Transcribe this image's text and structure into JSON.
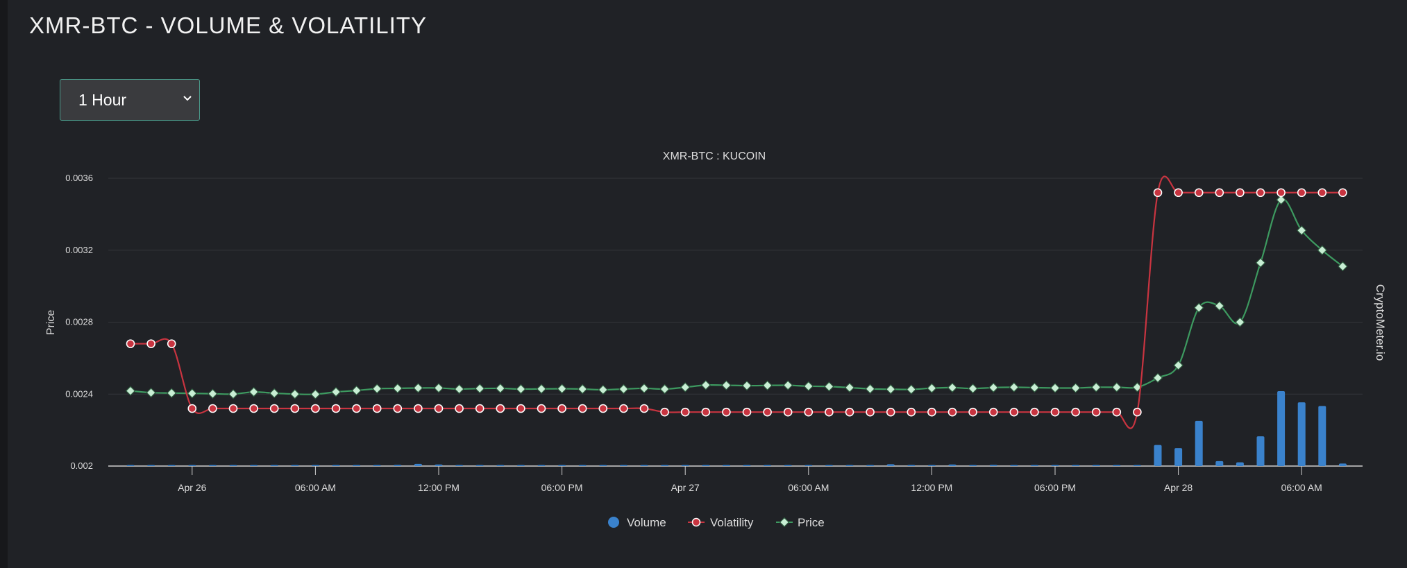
{
  "page": {
    "title": "XMR-BTC - VOLUME & VOLATILITY"
  },
  "interval": {
    "selected": "1 Hour"
  },
  "colors": {
    "volume": "#3a82cc",
    "volatility": "#c83440",
    "price": "#3d9a60",
    "price_marker": "#c8eed4",
    "grid": "#34363b",
    "text": "#dddddd"
  },
  "chart_data": {
    "type": "line",
    "title": "XMR-BTC : KUCOIN",
    "ylabel": "Price",
    "watermark": "CryptoMeter.io",
    "ylim": [
      0.002,
      0.0036
    ],
    "yticks": [
      0.002,
      0.0024,
      0.0028,
      0.0032,
      0.0036
    ],
    "ytick_labels": [
      "0.002",
      "0.0024",
      "0.0028",
      "0.0032",
      "0.0036"
    ],
    "x_points": 60,
    "xticks": [
      {
        "index": 3,
        "label": "Apr 26"
      },
      {
        "index": 9,
        "label": "06:00 AM"
      },
      {
        "index": 15,
        "label": "12:00 PM"
      },
      {
        "index": 21,
        "label": "06:00 PM"
      },
      {
        "index": 27,
        "label": "Apr 27"
      },
      {
        "index": 33,
        "label": "06:00 AM"
      },
      {
        "index": 39,
        "label": "12:00 PM"
      },
      {
        "index": 45,
        "label": "06:00 PM"
      },
      {
        "index": 51,
        "label": "Apr 28"
      },
      {
        "index": 57,
        "label": "06:00 AM"
      }
    ],
    "legend": [
      "Volume",
      "Volatility",
      "Price"
    ],
    "series": [
      {
        "name": "Volatility",
        "values": [
          0.00268,
          0.00268,
          0.00268,
          0.00232,
          0.00232,
          0.00232,
          0.00232,
          0.00232,
          0.00232,
          0.00232,
          0.00232,
          0.00232,
          0.00232,
          0.00232,
          0.00232,
          0.00232,
          0.00232,
          0.00232,
          0.00232,
          0.00232,
          0.00232,
          0.00232,
          0.00232,
          0.00232,
          0.00232,
          0.00232,
          0.0023,
          0.0023,
          0.0023,
          0.0023,
          0.0023,
          0.0023,
          0.0023,
          0.0023,
          0.0023,
          0.0023,
          0.0023,
          0.0023,
          0.0023,
          0.0023,
          0.0023,
          0.0023,
          0.0023,
          0.0023,
          0.0023,
          0.0023,
          0.0023,
          0.0023,
          0.0023,
          0.0023,
          0.00352,
          0.00352,
          0.00352,
          0.00352,
          0.00352,
          0.00352,
          0.00352,
          0.00352,
          0.00352,
          0.00352
        ]
      },
      {
        "name": "Price",
        "values": [
          0.002418,
          0.002408,
          0.002406,
          0.002404,
          0.002402,
          0.0024,
          0.002412,
          0.002405,
          0.0024,
          0.002399,
          0.002412,
          0.00242,
          0.00243,
          0.002432,
          0.002434,
          0.002434,
          0.002428,
          0.002431,
          0.002432,
          0.002428,
          0.002429,
          0.00243,
          0.002428,
          0.002424,
          0.002428,
          0.002432,
          0.002428,
          0.002438,
          0.00245,
          0.002449,
          0.002447,
          0.002448,
          0.002449,
          0.002444,
          0.002442,
          0.002436,
          0.002429,
          0.002427,
          0.002426,
          0.002433,
          0.002436,
          0.002431,
          0.002436,
          0.002438,
          0.002436,
          0.002434,
          0.002434,
          0.002438,
          0.002438,
          0.002438,
          0.00249,
          0.00256,
          0.00288,
          0.00289,
          0.0028,
          0.00313,
          0.00348,
          0.00331,
          0.0032,
          0.00311
        ]
      },
      {
        "name": "Volume",
        "values": [
          0,
          0,
          0,
          0.1,
          0,
          0,
          0,
          0.15,
          0,
          0,
          0,
          0,
          0.08,
          0.2,
          0.35,
          0.25,
          0.1,
          0.08,
          0,
          0,
          0,
          0.08,
          0.12,
          0.05,
          0.05,
          0,
          0,
          0.05,
          0,
          0.05,
          0.1,
          0.08,
          0.05,
          0.05,
          0,
          0,
          0,
          0.3,
          0.18,
          0,
          0.25,
          0.08,
          0.2,
          0.15,
          0,
          0,
          0,
          0,
          0,
          0,
          3.4,
          2.9,
          7.3,
          0.8,
          0.6,
          4.8,
          12.1,
          10.3,
          9.7,
          0.4
        ]
      }
    ]
  }
}
